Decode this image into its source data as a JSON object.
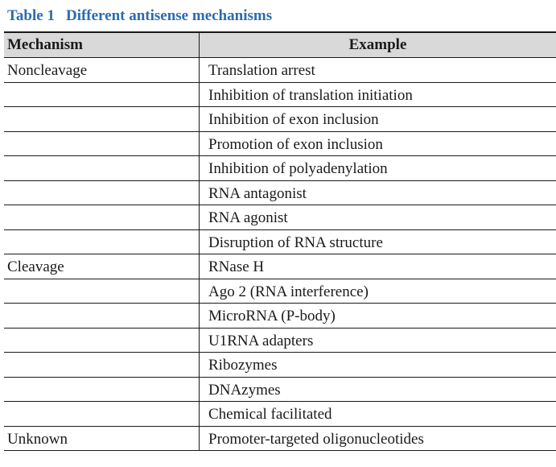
{
  "caption": {
    "number": "Table 1",
    "title": "Different antisense mechanisms"
  },
  "table": {
    "headers": {
      "mechanism": "Mechanism",
      "example": "Example"
    },
    "rows": [
      {
        "mechanism": "Noncleavage",
        "example": "Translation arrest"
      },
      {
        "mechanism": "",
        "example": "Inhibition of translation initiation"
      },
      {
        "mechanism": "",
        "example": "Inhibition of exon inclusion"
      },
      {
        "mechanism": "",
        "example": "Promotion of exon inclusion"
      },
      {
        "mechanism": "",
        "example": "Inhibition of polyadenylation"
      },
      {
        "mechanism": "",
        "example": "RNA antagonist"
      },
      {
        "mechanism": "",
        "example": "RNA agonist"
      },
      {
        "mechanism": "",
        "example": "Disruption of RNA structure"
      },
      {
        "mechanism": "Cleavage",
        "example": "RNase H"
      },
      {
        "mechanism": "",
        "example": "Ago 2 (RNA interference)"
      },
      {
        "mechanism": "",
        "example": "MicroRNA (P-body)"
      },
      {
        "mechanism": "",
        "example": "U1RNA adapters"
      },
      {
        "mechanism": "",
        "example": "Ribozymes"
      },
      {
        "mechanism": "",
        "example": "DNAzymes"
      },
      {
        "mechanism": "",
        "example": "Chemical facilitated"
      },
      {
        "mechanism": "Unknown",
        "example": "Promoter-targeted oligonucleotides"
      }
    ]
  },
  "colors": {
    "caption": "#2b6cae",
    "header_background": "#d9d9d9",
    "rule": "#1a1a1a"
  }
}
